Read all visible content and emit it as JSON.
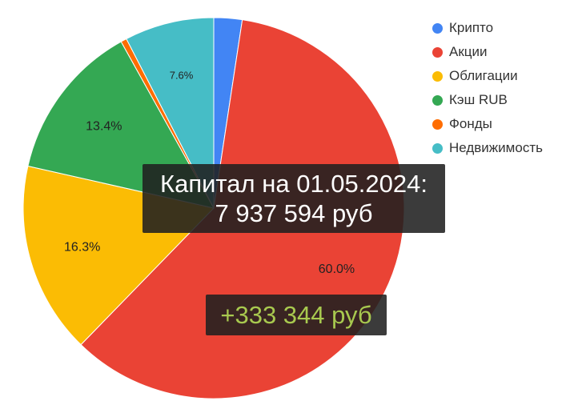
{
  "chart_data": {
    "type": "pie",
    "slices": [
      {
        "label": "Крипто",
        "value": 2.4,
        "color": "#4285f4",
        "data_label": ""
      },
      {
        "label": "Акции",
        "value": 60.0,
        "color": "#ea4335",
        "data_label": "60.0%"
      },
      {
        "label": "Облигации",
        "value": 16.3,
        "color": "#fbbc04",
        "data_label": "16.3%"
      },
      {
        "label": "Кэш RUB",
        "value": 13.4,
        "color": "#34a853",
        "data_label": "13.4%"
      },
      {
        "label": "Фонды",
        "value": 0.5,
        "color": "#ff6d01",
        "data_label": ""
      },
      {
        "label": "Недвижимость",
        "value": 7.6,
        "color": "#46bdc6",
        "data_label": "7.6%"
      }
    ],
    "legend_position": "right"
  },
  "overlay": {
    "capital_line1": "Капитал на 01.05.2024:",
    "capital_line2": "7 937 594 руб",
    "change": "+333 344 руб",
    "change_color": "#a8c94f"
  }
}
